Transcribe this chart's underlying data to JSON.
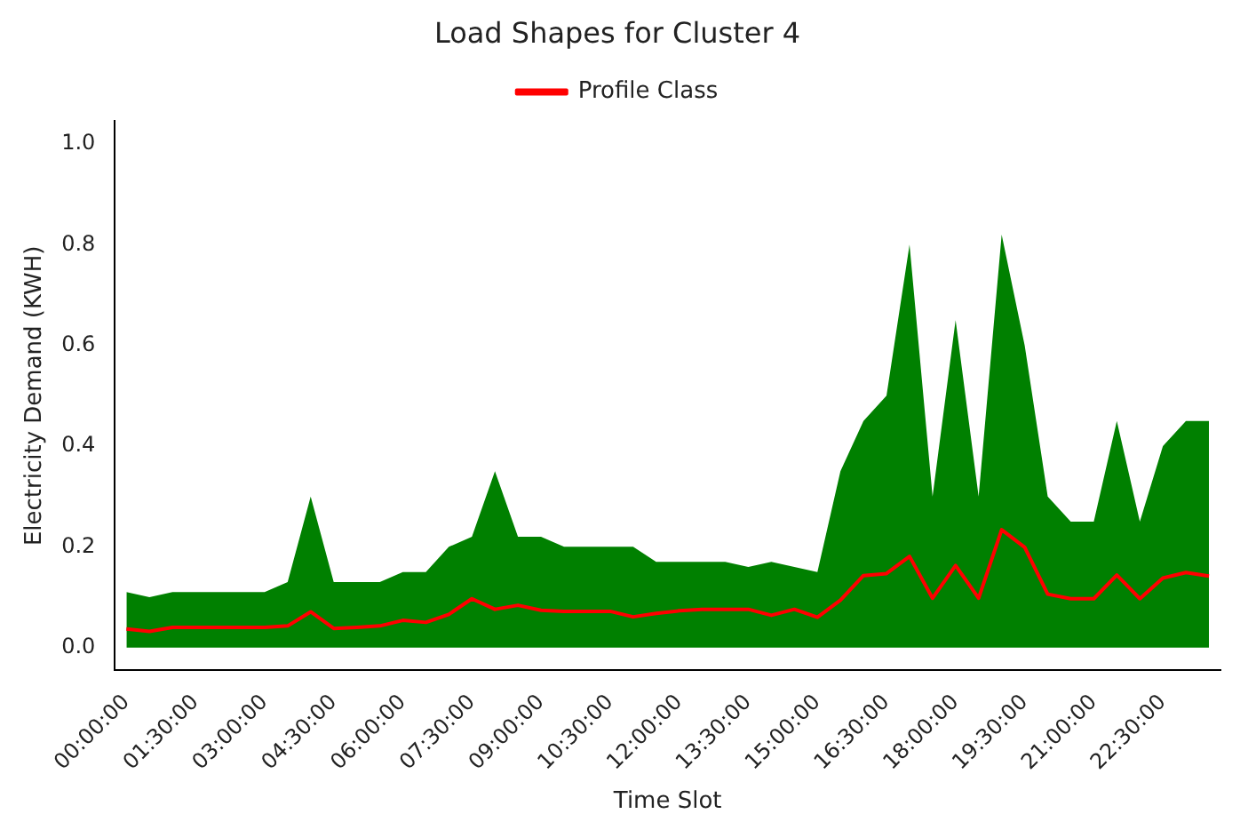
{
  "chart_data": {
    "type": "line",
    "title": "Load Shapes for Cluster 4",
    "xlabel": "Time Slot",
    "ylabel": "Electricity Demand (KWH)",
    "categories": [
      "00:00:00",
      null,
      null,
      "01:30:00",
      null,
      null,
      "03:00:00",
      null,
      null,
      "04:30:00",
      null,
      null,
      "06:00:00",
      null,
      null,
      "07:30:00",
      null,
      null,
      "09:00:00",
      null,
      null,
      "10:30:00",
      null,
      null,
      "12:00:00",
      null,
      null,
      "13:30:00",
      null,
      null,
      "15:00:00",
      null,
      null,
      "16:30:00",
      null,
      null,
      "18:00:00",
      null,
      null,
      "19:30:00",
      null,
      null,
      "21:00:00",
      null,
      null,
      "22:30:00",
      null,
      null
    ],
    "series": [
      {
        "type": "area",
        "color": "#008000",
        "values": [
          0.11,
          0.1,
          0.11,
          0.11,
          0.11,
          0.11,
          0.11,
          0.13,
          0.3,
          0.13,
          0.13,
          0.13,
          0.15,
          0.15,
          0.2,
          0.22,
          0.35,
          0.22,
          0.22,
          0.2,
          0.2,
          0.2,
          0.2,
          0.17,
          0.17,
          0.17,
          0.17,
          0.16,
          0.17,
          0.16,
          0.15,
          0.35,
          0.45,
          0.5,
          0.8,
          0.3,
          0.65,
          0.3,
          0.82,
          0.6,
          0.3,
          0.25,
          0.25,
          0.45,
          0.25,
          0.4,
          0.45,
          0.45
        ]
      },
      {
        "name": "Profile Class",
        "color": "#ff0000",
        "values": [
          0.037,
          0.032,
          0.04,
          0.04,
          0.04,
          0.04,
          0.04,
          0.043,
          0.071,
          0.038,
          0.04,
          0.043,
          0.054,
          0.05,
          0.066,
          0.097,
          0.076,
          0.084,
          0.074,
          0.072,
          0.072,
          0.072,
          0.061,
          0.068,
          0.073,
          0.076,
          0.076,
          0.076,
          0.064,
          0.076,
          0.06,
          0.094,
          0.143,
          0.147,
          0.181,
          0.098,
          0.163,
          0.098,
          0.234,
          0.199,
          0.106,
          0.097,
          0.097,
          0.144,
          0.097,
          0.138,
          0.149,
          0.142
        ]
      }
    ],
    "ylim": [
      -0.045,
      1.045
    ],
    "yticks": [
      {
        "value": 0,
        "label": "0.0"
      },
      {
        "value": 0.2,
        "label": "0.2"
      },
      {
        "value": 0.4,
        "label": "0.4"
      },
      {
        "value": 0.6,
        "label": "0.6"
      },
      {
        "value": 0.8,
        "label": "0.8"
      },
      {
        "value": 1,
        "label": "1.0"
      }
    ],
    "grid": false,
    "legend": "top"
  }
}
